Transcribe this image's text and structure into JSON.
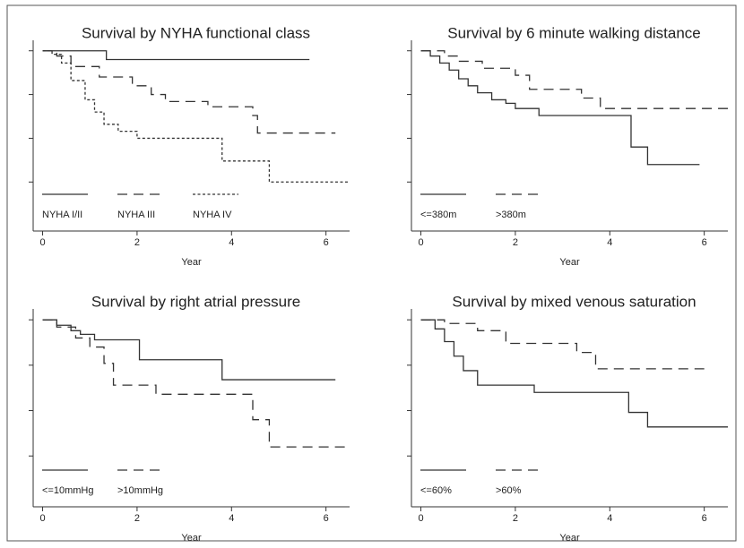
{
  "chart_data": [
    {
      "type": "step",
      "title": "Survival by NYHA functional class",
      "xlabel": "Year",
      "xlim": [
        -0.2,
        6.5
      ],
      "xticks": [
        0,
        2,
        4,
        6
      ],
      "ylim": [
        -0.03,
        1.06
      ],
      "yticks": [
        0.25,
        0.5,
        0.75,
        1
      ],
      "ytick_labels": false,
      "legend": "bottom-left",
      "series": [
        {
          "name": "NYHA I/II",
          "color": "#333333",
          "dash": "solid",
          "x": [
            0,
            1.35,
            5.65
          ],
          "values": [
            1,
            0.95,
            0.95
          ]
        },
        {
          "name": "NYHA III",
          "color": "#333333",
          "dash": "dashed",
          "x": [
            0,
            0.3,
            0.6,
            1.2,
            1.9,
            2.3,
            2.6,
            3.5,
            4.45,
            4.55,
            6.2
          ],
          "values": [
            1,
            0.97,
            0.91,
            0.85,
            0.8,
            0.75,
            0.71,
            0.68,
            0.63,
            0.53,
            0.53
          ]
        },
        {
          "name": "NYHA IV",
          "color": "#333333",
          "dash": "dotted",
          "x": [
            0,
            0.2,
            0.4,
            0.6,
            0.9,
            1.1,
            1.3,
            1.6,
            2.0,
            3.8,
            4.8,
            6.5
          ],
          "values": [
            1,
            0.98,
            0.93,
            0.83,
            0.72,
            0.65,
            0.58,
            0.54,
            0.5,
            0.37,
            0.25,
            0.25
          ]
        }
      ]
    },
    {
      "type": "step",
      "title": "Survival by 6 minute walking distance",
      "xlabel": "Year",
      "xlim": [
        -0.2,
        6.5
      ],
      "xticks": [
        0,
        2,
        4,
        6
      ],
      "ylim": [
        -0.03,
        1.06
      ],
      "yticks": [
        0.25,
        0.5,
        0.75,
        1
      ],
      "ytick_labels": false,
      "legend": "bottom-left",
      "series": [
        {
          "name": "<=380m",
          "color": "#333333",
          "dash": "solid",
          "x": [
            0,
            0.2,
            0.4,
            0.6,
            0.8,
            1.0,
            1.2,
            1.5,
            1.8,
            2.0,
            2.5,
            4.45,
            4.8,
            5.9
          ],
          "values": [
            1,
            0.97,
            0.93,
            0.89,
            0.84,
            0.8,
            0.76,
            0.72,
            0.7,
            0.67,
            0.63,
            0.45,
            0.35,
            0.35
          ]
        },
        {
          "name": ">380m",
          "color": "#333333",
          "dash": "dashed",
          "x": [
            0,
            0.5,
            0.8,
            1.3,
            2.0,
            2.3,
            3.4,
            3.8,
            6.5
          ],
          "values": [
            1,
            0.97,
            0.94,
            0.9,
            0.86,
            0.78,
            0.73,
            0.67,
            0.67
          ]
        }
      ]
    },
    {
      "type": "step",
      "title": "Survival by right atrial pressure",
      "xlabel": "Year",
      "xlim": [
        -0.2,
        6.5
      ],
      "xticks": [
        0,
        2,
        4,
        6
      ],
      "ylim": [
        -0.03,
        1.06
      ],
      "yticks": [
        0.25,
        0.5,
        0.75,
        1
      ],
      "ytick_labels": false,
      "legend": "bottom-left",
      "series": [
        {
          "name": "<=10mmHg",
          "color": "#333333",
          "dash": "solid",
          "x": [
            0,
            0.3,
            0.6,
            0.8,
            1.1,
            2.05,
            3.8,
            6.2
          ],
          "values": [
            1,
            0.97,
            0.94,
            0.92,
            0.89,
            0.78,
            0.67,
            0.67
          ]
        },
        {
          "name": ">10mmHg",
          "color": "#333333",
          "dash": "dashed",
          "x": [
            0,
            0.3,
            0.7,
            1.0,
            1.3,
            1.5,
            2.4,
            4.45,
            4.8,
            6.5
          ],
          "values": [
            1,
            0.96,
            0.9,
            0.85,
            0.76,
            0.64,
            0.59,
            0.45,
            0.3,
            0.3
          ]
        }
      ]
    },
    {
      "type": "step",
      "title": "Survival by mixed venous saturation",
      "xlabel": "Year",
      "xlim": [
        -0.2,
        6.5
      ],
      "xticks": [
        0,
        2,
        4,
        6
      ],
      "ylim": [
        -0.03,
        1.06
      ],
      "yticks": [
        0.25,
        0.5,
        0.75,
        1
      ],
      "ytick_labels": false,
      "legend": "bottom-left",
      "series": [
        {
          "name": "<=60%",
          "color": "#333333",
          "dash": "solid",
          "x": [
            0,
            0.3,
            0.5,
            0.7,
            0.9,
            1.2,
            2.4,
            4.4,
            4.8,
            6.5
          ],
          "values": [
            1,
            0.95,
            0.88,
            0.8,
            0.72,
            0.64,
            0.6,
            0.49,
            0.41,
            0.41
          ]
        },
        {
          "name": ">60%",
          "color": "#333333",
          "dash": "dashed",
          "x": [
            0,
            0.5,
            1.2,
            1.8,
            3.3,
            3.7,
            6.0
          ],
          "values": [
            1,
            0.98,
            0.94,
            0.87,
            0.82,
            0.73,
            0.73
          ]
        }
      ]
    }
  ]
}
